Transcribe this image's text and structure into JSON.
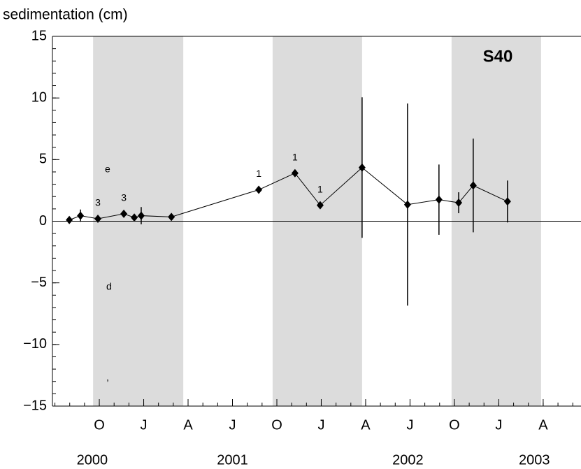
{
  "chart_data": {
    "type": "line",
    "title": "sedimentation (cm)",
    "annotation": "S40",
    "x": [
      2000.581,
      2000.644,
      2000.742,
      2000.888,
      2000.947,
      2000.986,
      2001.156,
      2001.648,
      2001.852,
      2001.994,
      2002.23,
      2002.486,
      2002.663,
      2002.774,
      2002.856,
      2003.049
    ],
    "values": [
      0.1,
      0.45,
      0.2,
      0.6,
      0.3,
      0.45,
      0.35,
      2.55,
      3.9,
      1.3,
      4.35,
      1.35,
      1.75,
      1.5,
      2.9,
      1.6
    ],
    "errors": [
      null,
      0.5,
      null,
      null,
      null,
      0.7,
      null,
      null,
      null,
      null,
      5.7,
      8.2,
      2.85,
      0.85,
      3.8,
      1.7
    ],
    "point_labels": [
      null,
      null,
      "3",
      "3",
      null,
      null,
      null,
      "1",
      "1",
      "1",
      null,
      null,
      null,
      null,
      null,
      null
    ],
    "color": "#000000",
    "shaded_spans": [
      [
        2000.715,
        2001.223
      ],
      [
        2001.726,
        2002.23
      ],
      [
        2002.734,
        2003.238
      ]
    ],
    "shade_color": "#dcdcdc",
    "xlim": [
      2000.486,
      2003.463
    ],
    "xticks": [
      {
        "value": 2000.75,
        "label": "O"
      },
      {
        "value": 2001.0,
        "label": "J"
      },
      {
        "value": 2001.25,
        "label": "A"
      },
      {
        "value": 2001.5,
        "label": "J"
      },
      {
        "value": 2001.75,
        "label": "O"
      },
      {
        "value": 2002.0,
        "label": "J"
      },
      {
        "value": 2002.25,
        "label": "A"
      },
      {
        "value": 2002.5,
        "label": "J"
      },
      {
        "value": 2002.75,
        "label": "O"
      },
      {
        "value": 2003.0,
        "label": "J"
      },
      {
        "value": 2003.25,
        "label": "A"
      }
    ],
    "year_labels": [
      {
        "value": 2000.71,
        "label": "2000"
      },
      {
        "value": 2001.5,
        "label": "2001"
      },
      {
        "value": 2002.488,
        "label": "2002"
      },
      {
        "value": 2003.2,
        "label": "2003"
      }
    ],
    "ylim": [
      -15,
      15
    ],
    "yticks": [
      {
        "value": -15,
        "label": "−15"
      },
      {
        "value": -10,
        "label": "−10"
      },
      {
        "value": -5,
        "label": "−5"
      },
      0,
      5,
      10,
      15
    ],
    "fragments": [
      "e",
      "d",
      ","
    ]
  }
}
